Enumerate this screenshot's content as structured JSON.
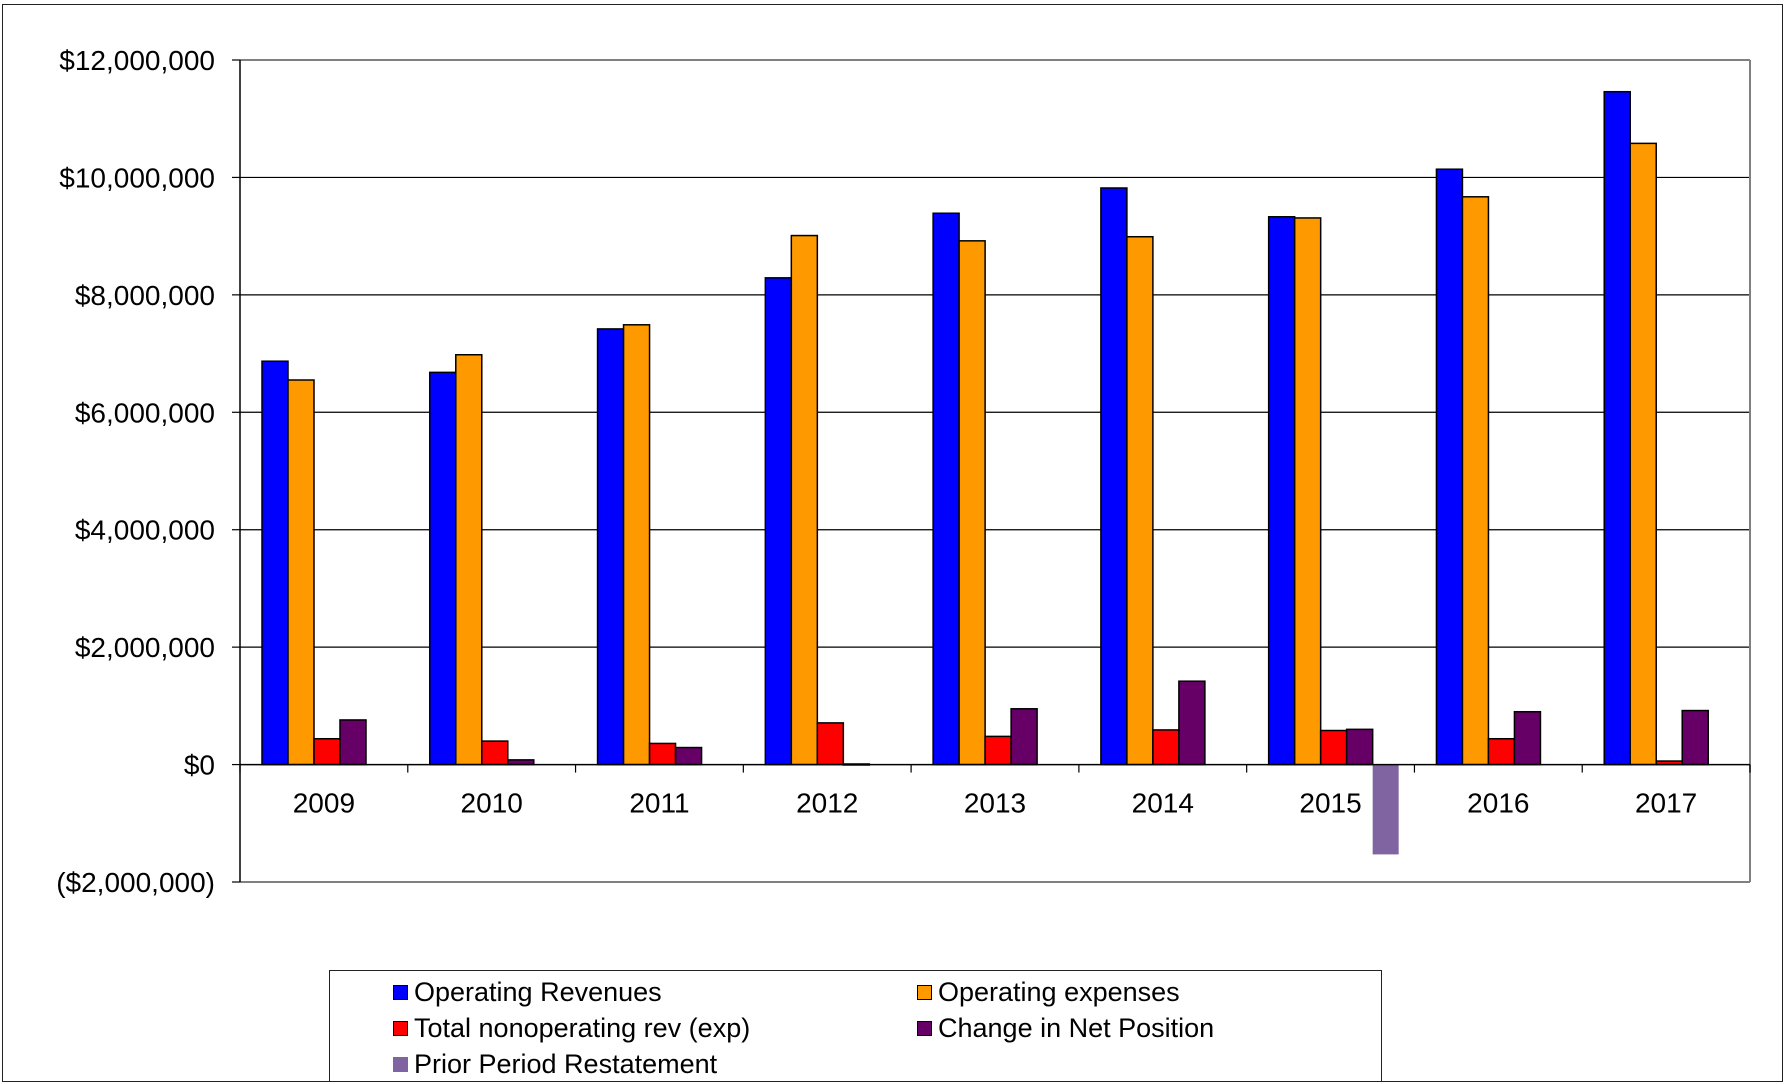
{
  "chart_data": {
    "type": "bar",
    "categories": [
      "2009",
      "2010",
      "2011",
      "2012",
      "2013",
      "2014",
      "2015",
      "2016",
      "2017"
    ],
    "series": [
      {
        "name": "Operating Revenues",
        "color": "#0000ff",
        "values": [
          6870000,
          6680000,
          7420000,
          8290000,
          9390000,
          9820000,
          9330000,
          10140000,
          11460000
        ]
      },
      {
        "name": "Operating expenses",
        "color": "#ff9900",
        "values": [
          6550000,
          6980000,
          7490000,
          9010000,
          8920000,
          8990000,
          9310000,
          9670000,
          10580000
        ]
      },
      {
        "name": "Total nonoperating rev (exp)",
        "color": "#ff0000",
        "values": [
          440000,
          400000,
          360000,
          710000,
          480000,
          590000,
          580000,
          440000,
          60000
        ]
      },
      {
        "name": "Change in Net Position",
        "color": "#660066",
        "values": [
          760000,
          80000,
          290000,
          10000,
          950000,
          1420000,
          600000,
          900000,
          920000
        ]
      },
      {
        "name": "Prior Period Restatement",
        "color": "#8064a2",
        "values": [
          0,
          0,
          0,
          0,
          0,
          0,
          -1530000,
          0,
          0
        ]
      }
    ],
    "ylim": [
      -2000000,
      12000000
    ],
    "yticks": [
      12000000,
      10000000,
      8000000,
      6000000,
      4000000,
      2000000,
      0,
      -2000000
    ],
    "ytick_labels": [
      "$12,000,000",
      "$10,000,000",
      "$8,000,000",
      "$6,000,000",
      "$4,000,000",
      "$2,000,000",
      "$0",
      "($2,000,000)"
    ],
    "grid": true,
    "legend_position": "bottom"
  }
}
